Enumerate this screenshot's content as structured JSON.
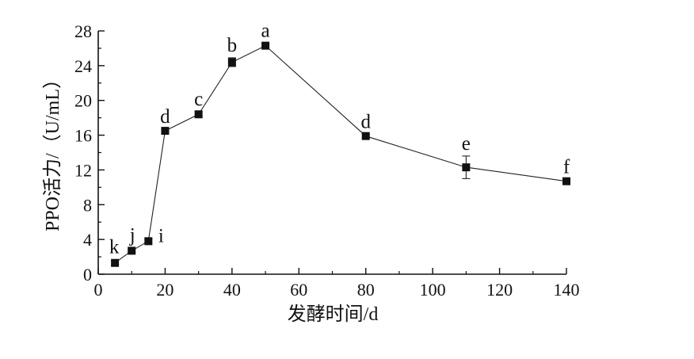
{
  "chart_data": {
    "type": "line",
    "title": "",
    "xlabel": "发酵时间/d",
    "ylabel": "PPO活力/（U/mL）",
    "xlim": [
      0,
      140
    ],
    "ylim": [
      0,
      28
    ],
    "x_ticks": [
      "0",
      "20",
      "40",
      "60",
      "80",
      "100",
      "120",
      "140"
    ],
    "y_ticks": [
      "0",
      "4",
      "8",
      "12",
      "16",
      "20",
      "24",
      "28"
    ],
    "grid": false,
    "legend": "none",
    "series": [
      {
        "x": [
          5,
          10,
          15,
          20,
          30,
          40,
          50,
          80,
          110,
          140
        ],
        "y": [
          1.3,
          2.7,
          3.8,
          16.5,
          18.4,
          24.4,
          26.3,
          15.9,
          12.3,
          10.7
        ],
        "error": [
          0.2,
          0.2,
          0.2,
          0.2,
          0.3,
          0.5,
          0.3,
          0.2,
          1.3,
          0.2
        ],
        "labels": [
          "k",
          "j",
          "i",
          "d",
          "c",
          "b",
          "a",
          "d",
          "e",
          "f"
        ]
      }
    ]
  }
}
